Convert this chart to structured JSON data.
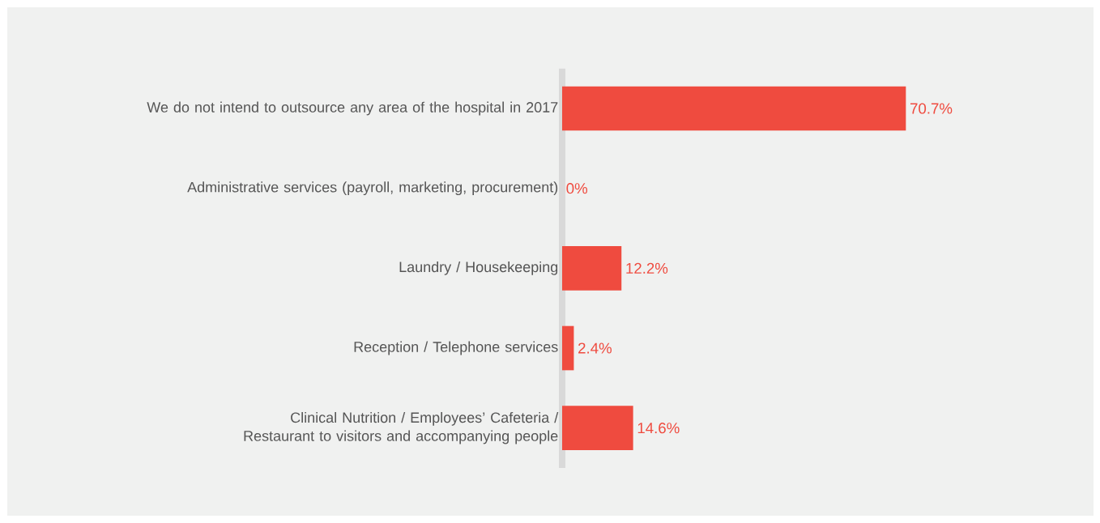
{
  "chart_data": {
    "type": "bar",
    "orientation": "horizontal",
    "categories": [
      "We do not intend to outsource any area of the hospital in 2017",
      "Administrative services (payroll, marketing, procurement)",
      "Laundry / Housekeeping",
      "Reception / Telephone services",
      "Clinical Nutrition / Employees’ Cafeteria / Restaurant to visitors and accompanying people"
    ],
    "values": [
      70.7,
      0,
      12.2,
      2.4,
      14.6
    ],
    "value_labels": [
      "70.7%",
      "0%",
      "12.2%",
      "2.4%",
      "14.6%"
    ],
    "color": "#ef4b3f",
    "tick_labels": "y"
  }
}
